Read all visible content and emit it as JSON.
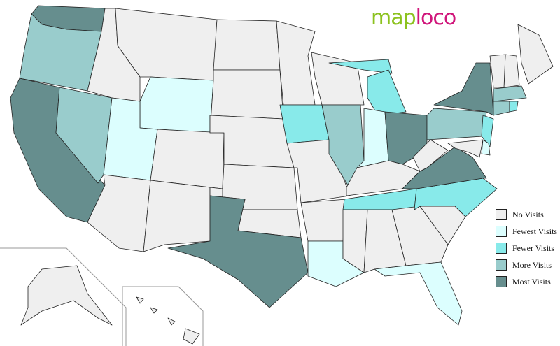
{
  "logo": {
    "part1": "map",
    "part2": "loco"
  },
  "legend": [
    {
      "label": "No Visits",
      "color": "#efefef"
    },
    {
      "label": "Fewest Visits",
      "color": "#dcfefe"
    },
    {
      "label": "Fewer Visits",
      "color": "#88eaea"
    },
    {
      "label": "More Visits",
      "color": "#99cccc"
    },
    {
      "label": "Most Visits",
      "color": "#668e8e"
    }
  ],
  "states": [
    {
      "state": "WA",
      "level": 4
    },
    {
      "state": "OR",
      "level": 3
    },
    {
      "state": "CA",
      "level": 4
    },
    {
      "state": "NV",
      "level": 3
    },
    {
      "state": "ID",
      "level": 0
    },
    {
      "state": "MT",
      "level": 0
    },
    {
      "state": "WY",
      "level": 1
    },
    {
      "state": "UT",
      "level": 1
    },
    {
      "state": "CO",
      "level": 0
    },
    {
      "state": "AZ",
      "level": 0
    },
    {
      "state": "NM",
      "level": 0
    },
    {
      "state": "ND",
      "level": 0
    },
    {
      "state": "SD",
      "level": 0
    },
    {
      "state": "NE",
      "level": 0
    },
    {
      "state": "KS",
      "level": 0
    },
    {
      "state": "OK",
      "level": 0
    },
    {
      "state": "TX",
      "level": 4
    },
    {
      "state": "MN",
      "level": 0
    },
    {
      "state": "IA",
      "level": 2
    },
    {
      "state": "MO",
      "level": 0
    },
    {
      "state": "AR",
      "level": 0
    },
    {
      "state": "LA",
      "level": 1
    },
    {
      "state": "WI",
      "level": 0
    },
    {
      "state": "IL",
      "level": 3
    },
    {
      "state": "MI",
      "level": 2
    },
    {
      "state": "IN",
      "level": 1
    },
    {
      "state": "OH",
      "level": 4
    },
    {
      "state": "KY",
      "level": 0
    },
    {
      "state": "TN",
      "level": 2
    },
    {
      "state": "MS",
      "level": 0
    },
    {
      "state": "AL",
      "level": 0
    },
    {
      "state": "GA",
      "level": 0
    },
    {
      "state": "FL",
      "level": 1
    },
    {
      "state": "SC",
      "level": 0
    },
    {
      "state": "NC",
      "level": 2
    },
    {
      "state": "VA",
      "level": 4
    },
    {
      "state": "WV",
      "level": 0
    },
    {
      "state": "PA",
      "level": 3
    },
    {
      "state": "NY",
      "level": 4
    },
    {
      "state": "NJ",
      "level": 2
    },
    {
      "state": "MD",
      "level": 0
    },
    {
      "state": "DE",
      "level": 1
    },
    {
      "state": "ME",
      "level": 0
    },
    {
      "state": "NH",
      "level": 0
    },
    {
      "state": "VT",
      "level": 0
    },
    {
      "state": "MA",
      "level": 3
    },
    {
      "state": "CT",
      "level": 3
    },
    {
      "state": "RI",
      "level": 2
    },
    {
      "state": "AK",
      "level": 0
    },
    {
      "state": "HI",
      "level": 0
    }
  ]
}
